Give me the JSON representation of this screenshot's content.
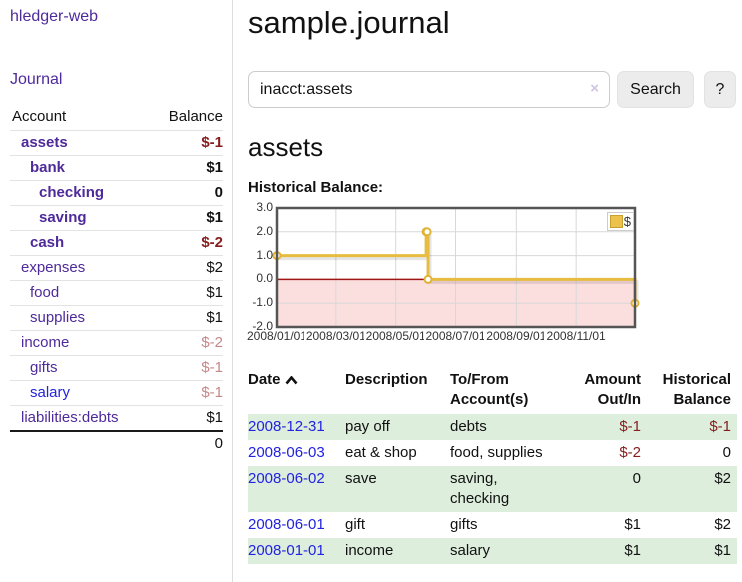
{
  "app": {
    "title": "hledger-web",
    "nav": {
      "journal": "Journal"
    }
  },
  "sidebar": {
    "col_account": "Account",
    "col_balance": "Balance",
    "accounts": [
      {
        "name": "assets",
        "level": 1,
        "bold": true,
        "balance": "$-1",
        "neg": true,
        "dim": false,
        "blue": false
      },
      {
        "name": "bank",
        "level": 2,
        "bold": true,
        "balance": "$1",
        "neg": false,
        "dim": false,
        "blue": false
      },
      {
        "name": "checking",
        "level": 3,
        "bold": true,
        "balance": "0",
        "neg": false,
        "dim": false,
        "blue": false
      },
      {
        "name": "saving",
        "level": 3,
        "bold": true,
        "balance": "$1",
        "neg": false,
        "dim": false,
        "blue": false
      },
      {
        "name": "cash",
        "level": 2,
        "bold": true,
        "balance": "$-2",
        "neg": true,
        "dim": false,
        "blue": false
      },
      {
        "name": "expenses",
        "level": 1,
        "bold": false,
        "balance": "$2",
        "neg": false,
        "dim": false,
        "blue": false
      },
      {
        "name": "food",
        "level": 2,
        "bold": false,
        "balance": "$1",
        "neg": false,
        "dim": false,
        "blue": false
      },
      {
        "name": "supplies",
        "level": 2,
        "bold": false,
        "balance": "$1",
        "neg": false,
        "dim": false,
        "blue": false
      },
      {
        "name": "income",
        "level": 1,
        "bold": false,
        "balance": "$-2",
        "neg": true,
        "dim": true,
        "blue": false
      },
      {
        "name": "gifts",
        "level": 2,
        "bold": false,
        "balance": "$-1",
        "neg": true,
        "dim": true,
        "blue": false
      },
      {
        "name": "salary",
        "level": 2,
        "bold": false,
        "balance": "$-1",
        "neg": true,
        "dim": true,
        "blue": true
      },
      {
        "name": "liabilities:debts",
        "level": 1,
        "bold": false,
        "balance": "$1",
        "neg": false,
        "dim": false,
        "blue": false
      }
    ],
    "total": "0"
  },
  "main": {
    "title": "sample.journal",
    "search": {
      "value": "inacct:assets",
      "clear_icon": "×",
      "search_label": "Search",
      "help_label": "?"
    },
    "account_heading": "assets",
    "chart_label": "Historical Balance:"
  },
  "chart_data": {
    "type": "line",
    "step": true,
    "title": "Historical Balance",
    "legend_label": "$",
    "legend_position": "top-right",
    "grid": true,
    "xlim": [
      "2008-01-01",
      "2008-12-31"
    ],
    "ylim": [
      -2.0,
      3.0
    ],
    "yticks": [
      "3.0",
      "2.0",
      "1.0",
      "0.0",
      "-1.0",
      "-2.0"
    ],
    "xticks": [
      {
        "date": "2008-01-01",
        "label": "2008/01/01"
      },
      {
        "date": "2008-03-01",
        "label": "2008/03/01"
      },
      {
        "date": "2008-05-01",
        "label": "2008/05/01"
      },
      {
        "date": "2008-07-01",
        "label": "2008/07/01"
      },
      {
        "date": "2008-09-01",
        "label": "2008/09/01"
      },
      {
        "date": "2008-11-01",
        "label": "2008/11/01"
      }
    ],
    "series": [
      {
        "name": "$",
        "points": [
          [
            "2008-01-01",
            1.0
          ],
          [
            "2008-06-01",
            2.0
          ],
          [
            "2008-06-02",
            2.0
          ],
          [
            "2008-06-03",
            0.0
          ],
          [
            "2008-12-31",
            -1.0
          ]
        ]
      }
    ],
    "colors": {
      "line": "#e7bd41",
      "marker_ring": "#dfb336",
      "negative_region": "#fbdede",
      "zero_line": "#a01515",
      "grid": "#d8d8d8",
      "border": "#555555"
    }
  },
  "register": {
    "headers": {
      "date": "Date",
      "sort_icon": "caret-up",
      "description": "Description",
      "accounts": "To/From Account(s)",
      "amount": "Amount Out/In",
      "balance": "Historical Balance"
    },
    "rows": [
      {
        "date": "2008-12-31",
        "description": "pay off",
        "accounts": "debts",
        "amount": "$-1",
        "balance": "$-1",
        "shade": true
      },
      {
        "date": "2008-06-03",
        "description": "eat & shop",
        "accounts": "food, supplies",
        "amount": "$-2",
        "balance": "0",
        "shade": false
      },
      {
        "date": "2008-06-02",
        "description": "save",
        "accounts": "saving, checking",
        "amount": "0",
        "balance": "$2",
        "shade": true
      },
      {
        "date": "2008-06-01",
        "description": "gift",
        "accounts": "gifts",
        "amount": "$1",
        "balance": "$2",
        "shade": false
      },
      {
        "date": "2008-01-01",
        "description": "income",
        "accounts": "salary",
        "amount": "$1",
        "balance": "$1",
        "shade": true
      }
    ]
  }
}
